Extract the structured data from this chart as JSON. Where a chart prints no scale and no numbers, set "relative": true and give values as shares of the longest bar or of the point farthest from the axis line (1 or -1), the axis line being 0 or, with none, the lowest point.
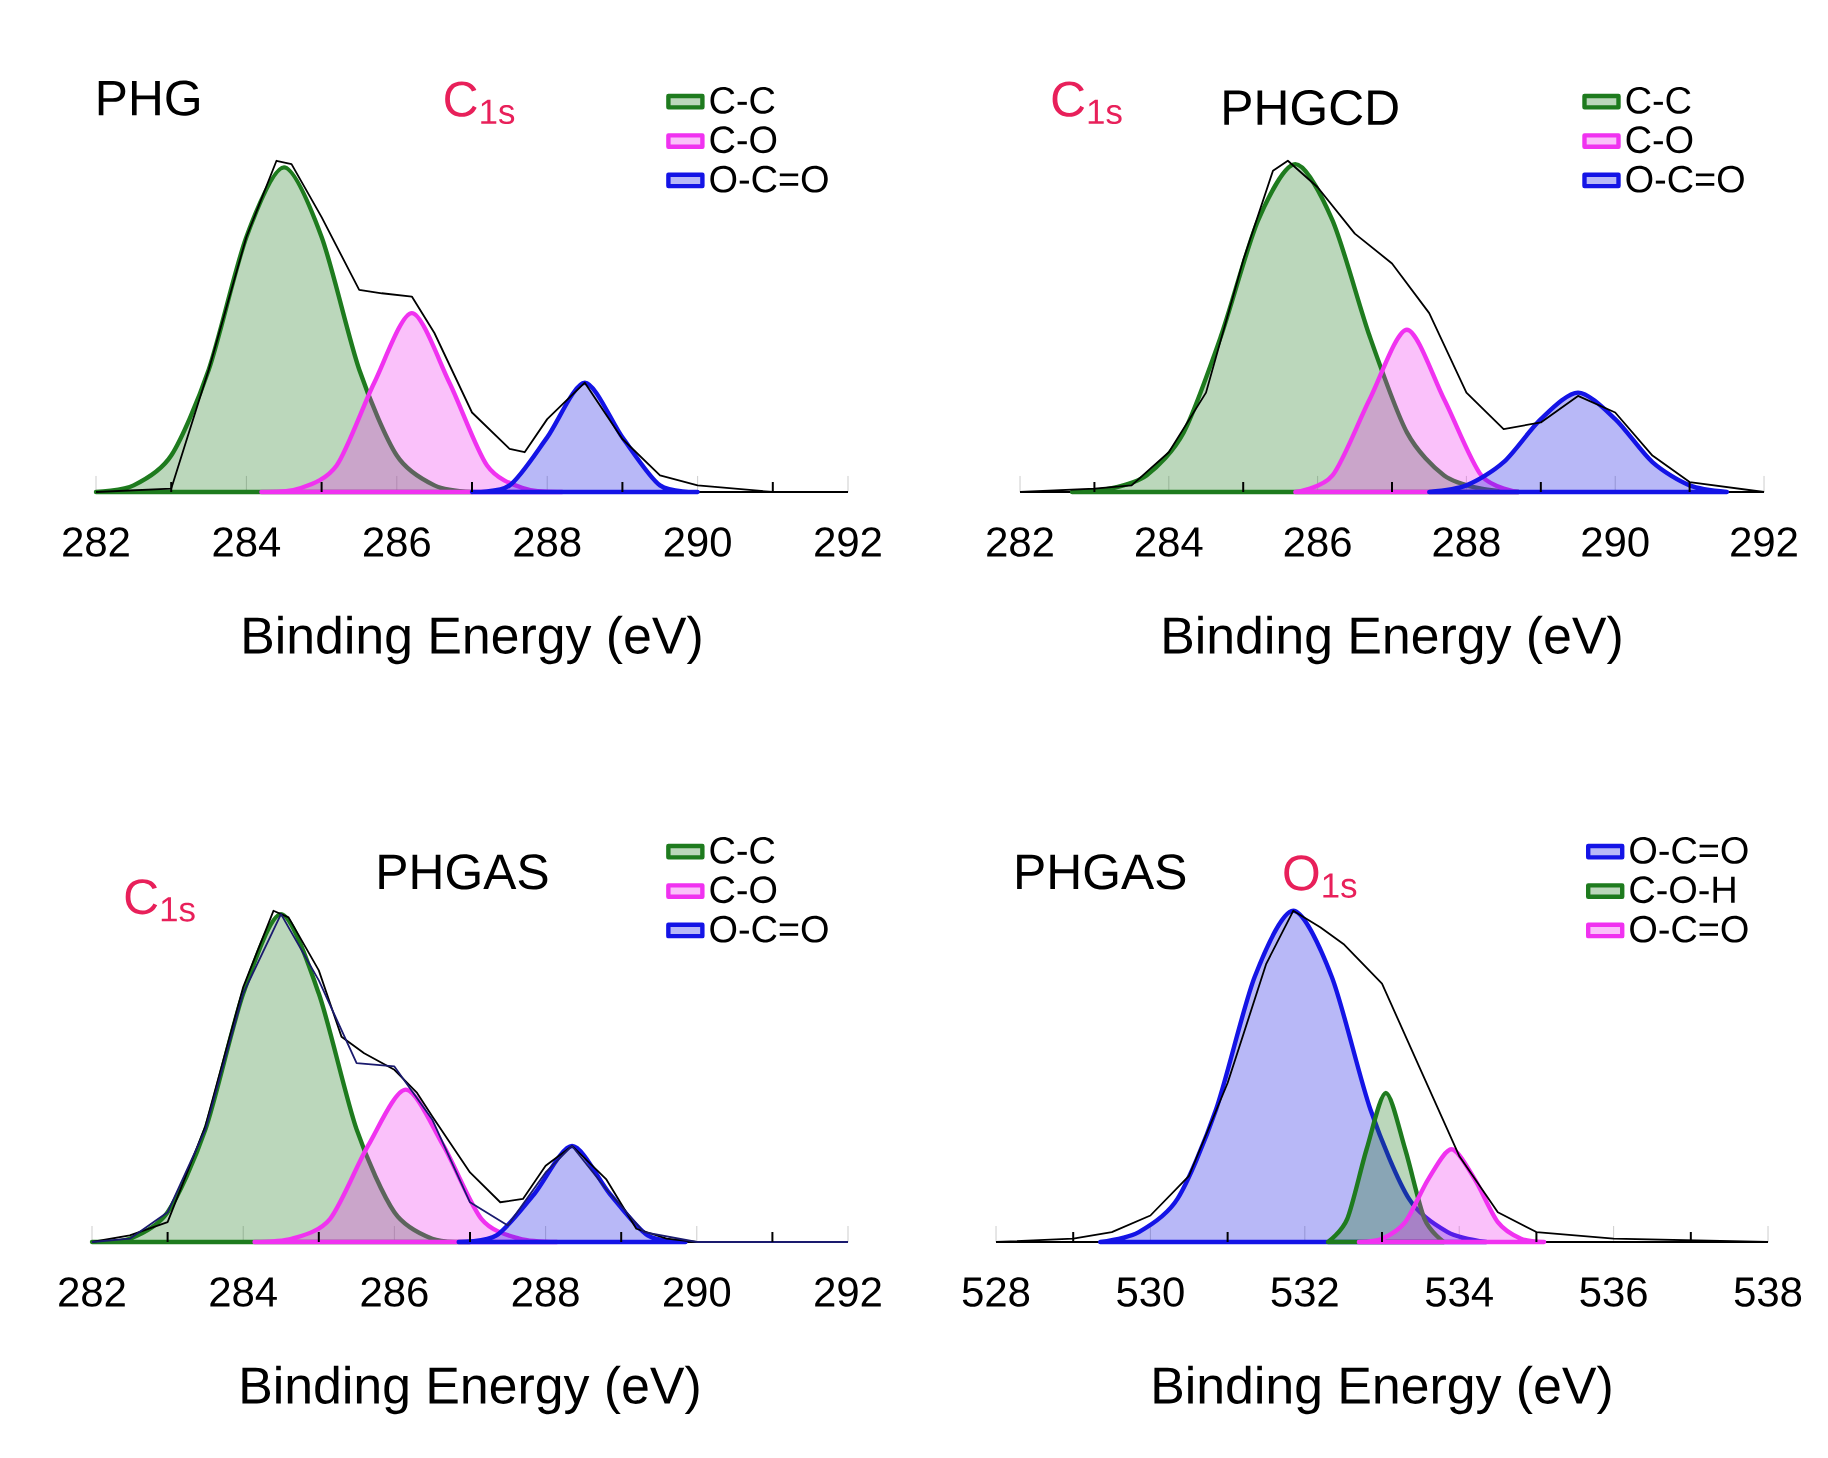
{
  "chart_data": [
    {
      "type": "area",
      "relative": true,
      "xlabel": "Binding Energy (eV)",
      "xlim": [
        282,
        292
      ],
      "xticks": [
        282,
        {
          "value": 283,
          "label": null
        },
        284,
        {
          "value": 285,
          "label": null
        },
        286,
        {
          "value": 287,
          "label": null
        },
        288,
        {
          "value": 289,
          "label": null
        },
        290,
        {
          "value": 291,
          "label": null
        },
        292
      ],
      "tick_labels": "x",
      "legend": "top right",
      "annotations": [
        "PHG",
        "C$_{1s}$"
      ],
      "series": [
        {
          "name": "C-C",
          "color": "#1e7b1e",
          "x": [
            282,
            282.5,
            283,
            283.5,
            284,
            284.5,
            285,
            285.5,
            286,
            286.5,
            287
          ],
          "values": [
            0,
            0.02,
            0.11,
            0.37,
            0.77,
            0.98,
            0.77,
            0.37,
            0.11,
            0.02,
            0
          ]
        },
        {
          "name": "C-O",
          "color": "#f032f0",
          "x": [
            284.2,
            284.7,
            285.2,
            285.7,
            286.2,
            286.7,
            287.2,
            287.7,
            288.2
          ],
          "values": [
            0,
            0.01,
            0.08,
            0.33,
            0.54,
            0.33,
            0.08,
            0.01,
            0
          ]
        },
        {
          "name": "O-C=O",
          "color": "#1414e6",
          "x": [
            287,
            287.5,
            288,
            288.5,
            289,
            289.5,
            290
          ],
          "values": [
            0,
            0.02,
            0.165,
            0.33,
            0.165,
            0.02,
            0
          ]
        },
        {
          "type": "line",
          "color": "#000000",
          "x": [
            282,
            283,
            283.5,
            284,
            284.4,
            284.6,
            285,
            285.5,
            285.8,
            286.2,
            286.5,
            287,
            287.5,
            287.7,
            288,
            288.5,
            289,
            289.5,
            290,
            291,
            292
          ],
          "values": [
            0,
            0.01,
            0.37,
            0.77,
            1.0,
            0.99,
            0.83,
            0.61,
            0.6,
            0.59,
            0.48,
            0.24,
            0.13,
            0.12,
            0.22,
            0.33,
            0.16,
            0.05,
            0.02,
            0,
            0
          ]
        }
      ]
    },
    {
      "type": "area",
      "relative": true,
      "xlabel": "Binding Energy (eV)",
      "xlim": [
        282,
        292
      ],
      "xticks": [
        282,
        {
          "value": 283,
          "label": null
        },
        284,
        {
          "value": 285,
          "label": null
        },
        286,
        {
          "value": 287,
          "label": null
        },
        288,
        {
          "value": 289,
          "label": null
        },
        290,
        {
          "value": 291,
          "label": null
        },
        292
      ],
      "tick_labels": "x",
      "legend": "top right",
      "annotations": [
        "C$_{1s}$",
        "PHGCD"
      ],
      "series": [
        {
          "name": "C-C",
          "color": "#1e7b1e",
          "x": [
            282.7,
            283.2,
            283.7,
            284.2,
            284.7,
            285.2,
            285.7,
            286.2,
            286.7,
            287.2,
            287.7,
            288.2,
            288.7
          ],
          "values": [
            0,
            0.01,
            0.05,
            0.18,
            0.47,
            0.82,
            0.99,
            0.82,
            0.47,
            0.18,
            0.05,
            0.01,
            0
          ]
        },
        {
          "name": "C-O",
          "color": "#f032f0",
          "x": [
            285.7,
            286.2,
            286.7,
            287.2,
            287.7,
            288.2,
            288.7
          ],
          "values": [
            0,
            0.05,
            0.28,
            0.49,
            0.28,
            0.05,
            0
          ]
        },
        {
          "name": "O-C=O",
          "color": "#1414e6",
          "x": [
            287.5,
            288,
            288.5,
            289,
            289.5,
            290,
            290.5,
            291,
            291.5
          ],
          "values": [
            0,
            0.02,
            0.09,
            0.22,
            0.3,
            0.22,
            0.09,
            0.02,
            0
          ]
        },
        {
          "type": "line",
          "color": "#000000",
          "x": [
            282,
            283,
            283.5,
            284,
            284.5,
            285,
            285.4,
            285.6,
            286,
            286.5,
            287,
            287.5,
            288,
            288.5,
            289,
            289.5,
            290,
            290.5,
            291,
            292
          ],
          "values": [
            0,
            0.01,
            0.02,
            0.12,
            0.3,
            0.7,
            0.97,
            1.0,
            0.92,
            0.78,
            0.69,
            0.54,
            0.3,
            0.19,
            0.21,
            0.29,
            0.24,
            0.11,
            0.03,
            0
          ]
        }
      ]
    },
    {
      "type": "area",
      "relative": true,
      "xlabel": "Binding Energy (eV)",
      "xlim": [
        282,
        292
      ],
      "xticks": [
        282,
        {
          "value": 283,
          "label": null
        },
        284,
        {
          "value": 285,
          "label": null
        },
        286,
        {
          "value": 287,
          "label": null
        },
        288,
        {
          "value": 289,
          "label": null
        },
        290,
        {
          "value": 291,
          "label": null
        },
        292
      ],
      "tick_labels": "x",
      "legend": "top right",
      "annotations": [
        "C$_{1s}$",
        "PHGAS"
      ],
      "series": [
        {
          "name": "C-C",
          "color": "#1e7b1e",
          "x": [
            282,
            282.5,
            283,
            283.5,
            284,
            284.5,
            285,
            285.5,
            286,
            286.5,
            287
          ],
          "values": [
            0,
            0.01,
            0.09,
            0.34,
            0.75,
            0.99,
            0.75,
            0.34,
            0.09,
            0.01,
            0
          ]
        },
        {
          "name": "C-O",
          "color": "#f032f0",
          "x": [
            284.15,
            284.65,
            285.15,
            285.65,
            286.15,
            286.65,
            287.15,
            287.65,
            288.15
          ],
          "values": [
            0,
            0.01,
            0.07,
            0.29,
            0.46,
            0.29,
            0.07,
            0.01,
            0
          ]
        },
        {
          "name": "O-C=O",
          "color": "#1414e6",
          "x": [
            286.85,
            287.35,
            287.85,
            288.35,
            288.85,
            289.35,
            289.85
          ],
          "values": [
            0,
            0.02,
            0.145,
            0.29,
            0.145,
            0.02,
            0
          ]
        },
        {
          "type": "line",
          "color": "#000000",
          "x": [
            282,
            282.5,
            283,
            283.5,
            284,
            284.4,
            284.6,
            285,
            285.3,
            285.6,
            286,
            286.3,
            286.5,
            287,
            287.4,
            287.7,
            288,
            288.35,
            288.8,
            289.2,
            289.6,
            290,
            292
          ],
          "values": [
            0,
            0.02,
            0.06,
            0.35,
            0.77,
            1.0,
            0.98,
            0.82,
            0.62,
            0.57,
            0.52,
            0.45,
            0.38,
            0.21,
            0.12,
            0.13,
            0.23,
            0.29,
            0.19,
            0.04,
            0.01,
            0,
            0
          ]
        },
        {
          "type": "line",
          "color": "#1a1a6e",
          "x": [
            282,
            282.5,
            283,
            283.5,
            284,
            284.5,
            285,
            285.5,
            286,
            286.5,
            287,
            287.5,
            288,
            288.35,
            288.8,
            289.3,
            290,
            292
          ],
          "values": [
            0,
            0.01,
            0.09,
            0.34,
            0.75,
            0.99,
            0.79,
            0.54,
            0.53,
            0.37,
            0.12,
            0.05,
            0.21,
            0.29,
            0.16,
            0.03,
            0,
            0
          ]
        }
      ]
    },
    {
      "type": "area",
      "relative": true,
      "xlabel": "Binding Energy (eV)",
      "xlim": [
        528,
        538
      ],
      "xticks": [
        528,
        {
          "value": 529,
          "label": null
        },
        530,
        {
          "value": 531,
          "label": null
        },
        532,
        {
          "value": 533,
          "label": null
        },
        534,
        {
          "value": 535,
          "label": null
        },
        536,
        {
          "value": 537,
          "label": null
        },
        538
      ],
      "tick_labels": "x",
      "legend": "top right",
      "annotations": [
        "PHGAS",
        "O$_{1s}$"
      ],
      "series": [
        {
          "name": "O-C=O",
          "color": "#1414e6",
          "x": [
            529.35,
            529.85,
            530.35,
            530.85,
            531.35,
            531.85,
            532.35,
            532.85,
            533.35,
            533.85,
            534.35
          ],
          "values": [
            0,
            0.03,
            0.13,
            0.4,
            0.8,
            1.0,
            0.8,
            0.4,
            0.13,
            0.03,
            0
          ]
        },
        {
          "name": "C-O-H",
          "color": "#1e7b1e",
          "x": [
            532.3,
            532.55,
            532.8,
            533.05,
            533.3,
            533.55,
            533.8
          ],
          "values": [
            0,
            0.07,
            0.28,
            0.45,
            0.28,
            0.07,
            0
          ]
        },
        {
          "name": "O-C=O",
          "color": "#f032f0",
          "x": [
            532.7,
            533.0,
            533.3,
            533.6,
            533.9,
            534.2,
            534.5,
            534.8,
            535.1
          ],
          "values": [
            0,
            0.01,
            0.06,
            0.19,
            0.28,
            0.19,
            0.06,
            0.01,
            0
          ]
        },
        {
          "type": "line",
          "color": "#000000",
          "x": [
            528,
            529,
            529.5,
            530,
            530.5,
            531,
            531.5,
            531.85,
            532.2,
            532.5,
            533,
            533.5,
            534,
            534.5,
            535,
            536,
            538
          ],
          "values": [
            0,
            0.01,
            0.03,
            0.08,
            0.2,
            0.48,
            0.84,
            1.0,
            0.95,
            0.9,
            0.78,
            0.52,
            0.26,
            0.09,
            0.03,
            0.01,
            0
          ]
        }
      ]
    }
  ]
}
